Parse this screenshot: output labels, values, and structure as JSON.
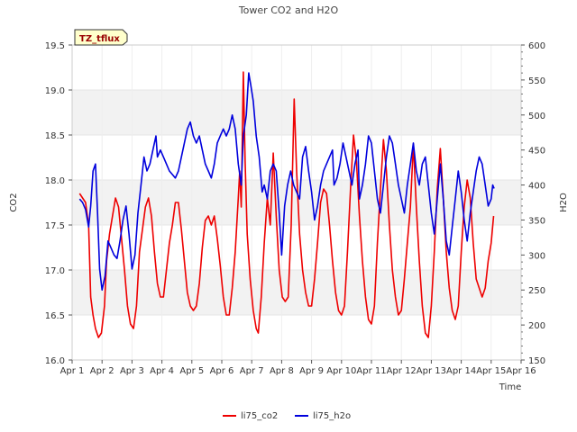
{
  "chart_data": {
    "type": "line",
    "title": "Tower CO2 and H2O",
    "xlabel": "Time",
    "ylabel_left": "CO2",
    "ylabel_right": "H2O",
    "badge": "TZ_tflux",
    "x_ticks": [
      {
        "label": "Apr 1",
        "day": 1
      },
      {
        "label": "Apr 2",
        "day": 2
      },
      {
        "label": "Apr 3",
        "day": 3
      },
      {
        "label": "Apr 4",
        "day": 4
      },
      {
        "label": "Apr 5",
        "day": 5
      },
      {
        "label": "Apr 6",
        "day": 6
      },
      {
        "label": "Apr 7",
        "day": 7
      },
      {
        "label": "Apr 8",
        "day": 8
      },
      {
        "label": "Apr 9",
        "day": 9
      },
      {
        "label": "Apr 10",
        "day": 10
      },
      {
        "label": "Apr 11",
        "day": 11
      },
      {
        "label": "Apr 12",
        "day": 12
      },
      {
        "label": "Apr 13",
        "day": 13
      },
      {
        "label": "Apr 14",
        "day": 14
      },
      {
        "label": "Apr 15",
        "day": 15
      },
      {
        "label": "Apr 16",
        "day": 16
      }
    ],
    "xlim": [
      1,
      16
    ],
    "ylim_left": [
      16.0,
      19.5
    ],
    "ylim_right": [
      150,
      600
    ],
    "y_ticks_left": [
      "16.0",
      "16.5",
      "17.0",
      "17.5",
      "18.0",
      "18.5",
      "19.0",
      "19.5"
    ],
    "y_ticks_right": [
      "150",
      "200",
      "250",
      "300",
      "350",
      "400",
      "450",
      "500",
      "550",
      "600"
    ],
    "grid_bands": true,
    "legend_position": "bottom-center",
    "series": [
      {
        "name": "li75_co2",
        "color": "#ee0000",
        "axis": "left",
        "points": [
          [
            1.25,
            17.85
          ],
          [
            1.35,
            17.8
          ],
          [
            1.45,
            17.75
          ],
          [
            1.55,
            17.5
          ],
          [
            1.62,
            16.7
          ],
          [
            1.7,
            16.5
          ],
          [
            1.78,
            16.35
          ],
          [
            1.88,
            16.25
          ],
          [
            1.98,
            16.3
          ],
          [
            2.08,
            16.6
          ],
          [
            2.15,
            17.1
          ],
          [
            2.25,
            17.4
          ],
          [
            2.35,
            17.6
          ],
          [
            2.45,
            17.8
          ],
          [
            2.55,
            17.7
          ],
          [
            2.65,
            17.35
          ],
          [
            2.75,
            17.0
          ],
          [
            2.85,
            16.6
          ],
          [
            2.95,
            16.4
          ],
          [
            3.05,
            16.35
          ],
          [
            3.15,
            16.6
          ],
          [
            3.25,
            17.2
          ],
          [
            3.35,
            17.45
          ],
          [
            3.45,
            17.7
          ],
          [
            3.55,
            17.8
          ],
          [
            3.65,
            17.6
          ],
          [
            3.75,
            17.2
          ],
          [
            3.85,
            16.85
          ],
          [
            3.95,
            16.7
          ],
          [
            4.05,
            16.7
          ],
          [
            4.15,
            17.0
          ],
          [
            4.25,
            17.3
          ],
          [
            4.35,
            17.5
          ],
          [
            4.45,
            17.75
          ],
          [
            4.55,
            17.75
          ],
          [
            4.65,
            17.45
          ],
          [
            4.75,
            17.1
          ],
          [
            4.85,
            16.75
          ],
          [
            4.95,
            16.6
          ],
          [
            5.05,
            16.55
          ],
          [
            5.15,
            16.6
          ],
          [
            5.25,
            16.85
          ],
          [
            5.35,
            17.25
          ],
          [
            5.45,
            17.55
          ],
          [
            5.55,
            17.6
          ],
          [
            5.65,
            17.5
          ],
          [
            5.75,
            17.6
          ],
          [
            5.85,
            17.35
          ],
          [
            5.95,
            17.05
          ],
          [
            6.05,
            16.7
          ],
          [
            6.15,
            16.5
          ],
          [
            6.25,
            16.5
          ],
          [
            6.35,
            16.8
          ],
          [
            6.45,
            17.2
          ],
          [
            6.55,
            17.8
          ],
          [
            6.6,
            18.1
          ],
          [
            6.65,
            17.7
          ],
          [
            6.72,
            19.2
          ],
          [
            6.78,
            18.2
          ],
          [
            6.85,
            17.4
          ],
          [
            6.95,
            16.9
          ],
          [
            7.05,
            16.55
          ],
          [
            7.15,
            16.35
          ],
          [
            7.22,
            16.3
          ],
          [
            7.32,
            16.7
          ],
          [
            7.42,
            17.3
          ],
          [
            7.52,
            17.8
          ],
          [
            7.62,
            17.5
          ],
          [
            7.72,
            18.3
          ],
          [
            7.82,
            17.6
          ],
          [
            7.92,
            17.0
          ],
          [
            8.02,
            16.7
          ],
          [
            8.12,
            16.65
          ],
          [
            8.22,
            16.7
          ],
          [
            8.32,
            17.5
          ],
          [
            8.42,
            18.9
          ],
          [
            8.5,
            18.1
          ],
          [
            8.6,
            17.4
          ],
          [
            8.7,
            17.0
          ],
          [
            8.8,
            16.75
          ],
          [
            8.9,
            16.6
          ],
          [
            9.0,
            16.6
          ],
          [
            9.1,
            16.9
          ],
          [
            9.2,
            17.3
          ],
          [
            9.3,
            17.75
          ],
          [
            9.4,
            17.9
          ],
          [
            9.5,
            17.85
          ],
          [
            9.6,
            17.5
          ],
          [
            9.7,
            17.1
          ],
          [
            9.8,
            16.75
          ],
          [
            9.9,
            16.55
          ],
          [
            10.0,
            16.5
          ],
          [
            10.1,
            16.6
          ],
          [
            10.2,
            17.2
          ],
          [
            10.3,
            17.9
          ],
          [
            10.4,
            18.5
          ],
          [
            10.5,
            18.2
          ],
          [
            10.6,
            17.6
          ],
          [
            10.7,
            17.1
          ],
          [
            10.8,
            16.7
          ],
          [
            10.9,
            16.45
          ],
          [
            11.0,
            16.4
          ],
          [
            11.1,
            16.6
          ],
          [
            11.2,
            17.3
          ],
          [
            11.3,
            17.9
          ],
          [
            11.4,
            18.45
          ],
          [
            11.5,
            18.1
          ],
          [
            11.6,
            17.5
          ],
          [
            11.7,
            17.0
          ],
          [
            11.8,
            16.7
          ],
          [
            11.9,
            16.5
          ],
          [
            12.0,
            16.55
          ],
          [
            12.1,
            16.9
          ],
          [
            12.2,
            17.3
          ],
          [
            12.3,
            17.7
          ],
          [
            12.4,
            18.4
          ],
          [
            12.5,
            17.7
          ],
          [
            12.6,
            17.1
          ],
          [
            12.7,
            16.6
          ],
          [
            12.8,
            16.3
          ],
          [
            12.9,
            16.25
          ],
          [
            13.0,
            16.6
          ],
          [
            13.1,
            17.2
          ],
          [
            13.2,
            17.9
          ],
          [
            13.3,
            18.35
          ],
          [
            13.4,
            17.8
          ],
          [
            13.5,
            17.2
          ],
          [
            13.6,
            16.8
          ],
          [
            13.7,
            16.55
          ],
          [
            13.8,
            16.45
          ],
          [
            13.9,
            16.6
          ],
          [
            14.0,
            17.2
          ],
          [
            14.1,
            17.7
          ],
          [
            14.2,
            18.0
          ],
          [
            14.3,
            17.8
          ],
          [
            14.4,
            17.3
          ],
          [
            14.5,
            16.9
          ],
          [
            14.6,
            16.8
          ],
          [
            14.7,
            16.7
          ],
          [
            14.8,
            16.8
          ],
          [
            14.9,
            17.1
          ],
          [
            15.0,
            17.3
          ],
          [
            15.08,
            17.6
          ]
        ]
      },
      {
        "name": "li75_h2o",
        "color": "#0000dd",
        "axis": "right",
        "points": [
          [
            1.25,
            380
          ],
          [
            1.35,
            375
          ],
          [
            1.45,
            365
          ],
          [
            1.55,
            340
          ],
          [
            1.62,
            370
          ],
          [
            1.7,
            420
          ],
          [
            1.78,
            430
          ],
          [
            1.85,
            360
          ],
          [
            1.92,
            280
          ],
          [
            2.0,
            250
          ],
          [
            2.1,
            270
          ],
          [
            2.2,
            320
          ],
          [
            2.3,
            310
          ],
          [
            2.4,
            300
          ],
          [
            2.5,
            295
          ],
          [
            2.6,
            320
          ],
          [
            2.7,
            350
          ],
          [
            2.8,
            370
          ],
          [
            2.9,
            330
          ],
          [
            3.0,
            280
          ],
          [
            3.1,
            300
          ],
          [
            3.2,
            360
          ],
          [
            3.3,
            400
          ],
          [
            3.4,
            440
          ],
          [
            3.5,
            420
          ],
          [
            3.6,
            430
          ],
          [
            3.7,
            450
          ],
          [
            3.8,
            470
          ],
          [
            3.85,
            440
          ],
          [
            3.95,
            450
          ],
          [
            4.05,
            440
          ],
          [
            4.15,
            430
          ],
          [
            4.25,
            420
          ],
          [
            4.35,
            415
          ],
          [
            4.45,
            410
          ],
          [
            4.55,
            420
          ],
          [
            4.65,
            440
          ],
          [
            4.75,
            460
          ],
          [
            4.85,
            480
          ],
          [
            4.95,
            490
          ],
          [
            5.05,
            470
          ],
          [
            5.15,
            460
          ],
          [
            5.25,
            470
          ],
          [
            5.35,
            450
          ],
          [
            5.45,
            430
          ],
          [
            5.55,
            420
          ],
          [
            5.65,
            410
          ],
          [
            5.75,
            430
          ],
          [
            5.85,
            460
          ],
          [
            5.95,
            470
          ],
          [
            6.05,
            480
          ],
          [
            6.15,
            470
          ],
          [
            6.25,
            480
          ],
          [
            6.35,
            500
          ],
          [
            6.45,
            480
          ],
          [
            6.55,
            430
          ],
          [
            6.65,
            400
          ],
          [
            6.72,
            470
          ],
          [
            6.82,
            500
          ],
          [
            6.9,
            560
          ],
          [
            6.98,
            540
          ],
          [
            7.05,
            520
          ],
          [
            7.15,
            470
          ],
          [
            7.25,
            440
          ],
          [
            7.35,
            390
          ],
          [
            7.42,
            400
          ],
          [
            7.52,
            380
          ],
          [
            7.62,
            420
          ],
          [
            7.72,
            430
          ],
          [
            7.82,
            420
          ],
          [
            7.92,
            360
          ],
          [
            8.0,
            300
          ],
          [
            8.1,
            370
          ],
          [
            8.2,
            400
          ],
          [
            8.3,
            420
          ],
          [
            8.4,
            400
          ],
          [
            8.5,
            390
          ],
          [
            8.6,
            380
          ],
          [
            8.7,
            440
          ],
          [
            8.8,
            455
          ],
          [
            8.9,
            420
          ],
          [
            9.0,
            390
          ],
          [
            9.1,
            350
          ],
          [
            9.2,
            370
          ],
          [
            9.3,
            400
          ],
          [
            9.4,
            420
          ],
          [
            9.5,
            430
          ],
          [
            9.6,
            440
          ],
          [
            9.7,
            450
          ],
          [
            9.75,
            400
          ],
          [
            9.85,
            410
          ],
          [
            9.95,
            430
          ],
          [
            10.05,
            460
          ],
          [
            10.15,
            440
          ],
          [
            10.25,
            420
          ],
          [
            10.35,
            400
          ],
          [
            10.45,
            430
          ],
          [
            10.55,
            450
          ],
          [
            10.6,
            380
          ],
          [
            10.7,
            400
          ],
          [
            10.8,
            430
          ],
          [
            10.9,
            470
          ],
          [
            11.0,
            460
          ],
          [
            11.1,
            420
          ],
          [
            11.2,
            380
          ],
          [
            11.3,
            360
          ],
          [
            11.4,
            400
          ],
          [
            11.5,
            440
          ],
          [
            11.6,
            470
          ],
          [
            11.7,
            460
          ],
          [
            11.8,
            430
          ],
          [
            11.9,
            400
          ],
          [
            12.0,
            380
          ],
          [
            12.1,
            360
          ],
          [
            12.2,
            400
          ],
          [
            12.3,
            430
          ],
          [
            12.4,
            460
          ],
          [
            12.5,
            420
          ],
          [
            12.6,
            400
          ],
          [
            12.7,
            430
          ],
          [
            12.8,
            440
          ],
          [
            12.9,
            400
          ],
          [
            13.0,
            360
          ],
          [
            13.1,
            330
          ],
          [
            13.2,
            380
          ],
          [
            13.3,
            430
          ],
          [
            13.4,
            380
          ],
          [
            13.5,
            320
          ],
          [
            13.6,
            300
          ],
          [
            13.7,
            340
          ],
          [
            13.8,
            380
          ],
          [
            13.9,
            420
          ],
          [
            14.0,
            390
          ],
          [
            14.1,
            350
          ],
          [
            14.2,
            320
          ],
          [
            14.3,
            360
          ],
          [
            14.4,
            390
          ],
          [
            14.5,
            420
          ],
          [
            14.6,
            440
          ],
          [
            14.7,
            430
          ],
          [
            14.8,
            400
          ],
          [
            14.9,
            370
          ],
          [
            15.0,
            380
          ],
          [
            15.05,
            400
          ],
          [
            15.1,
            395
          ]
        ]
      }
    ]
  }
}
